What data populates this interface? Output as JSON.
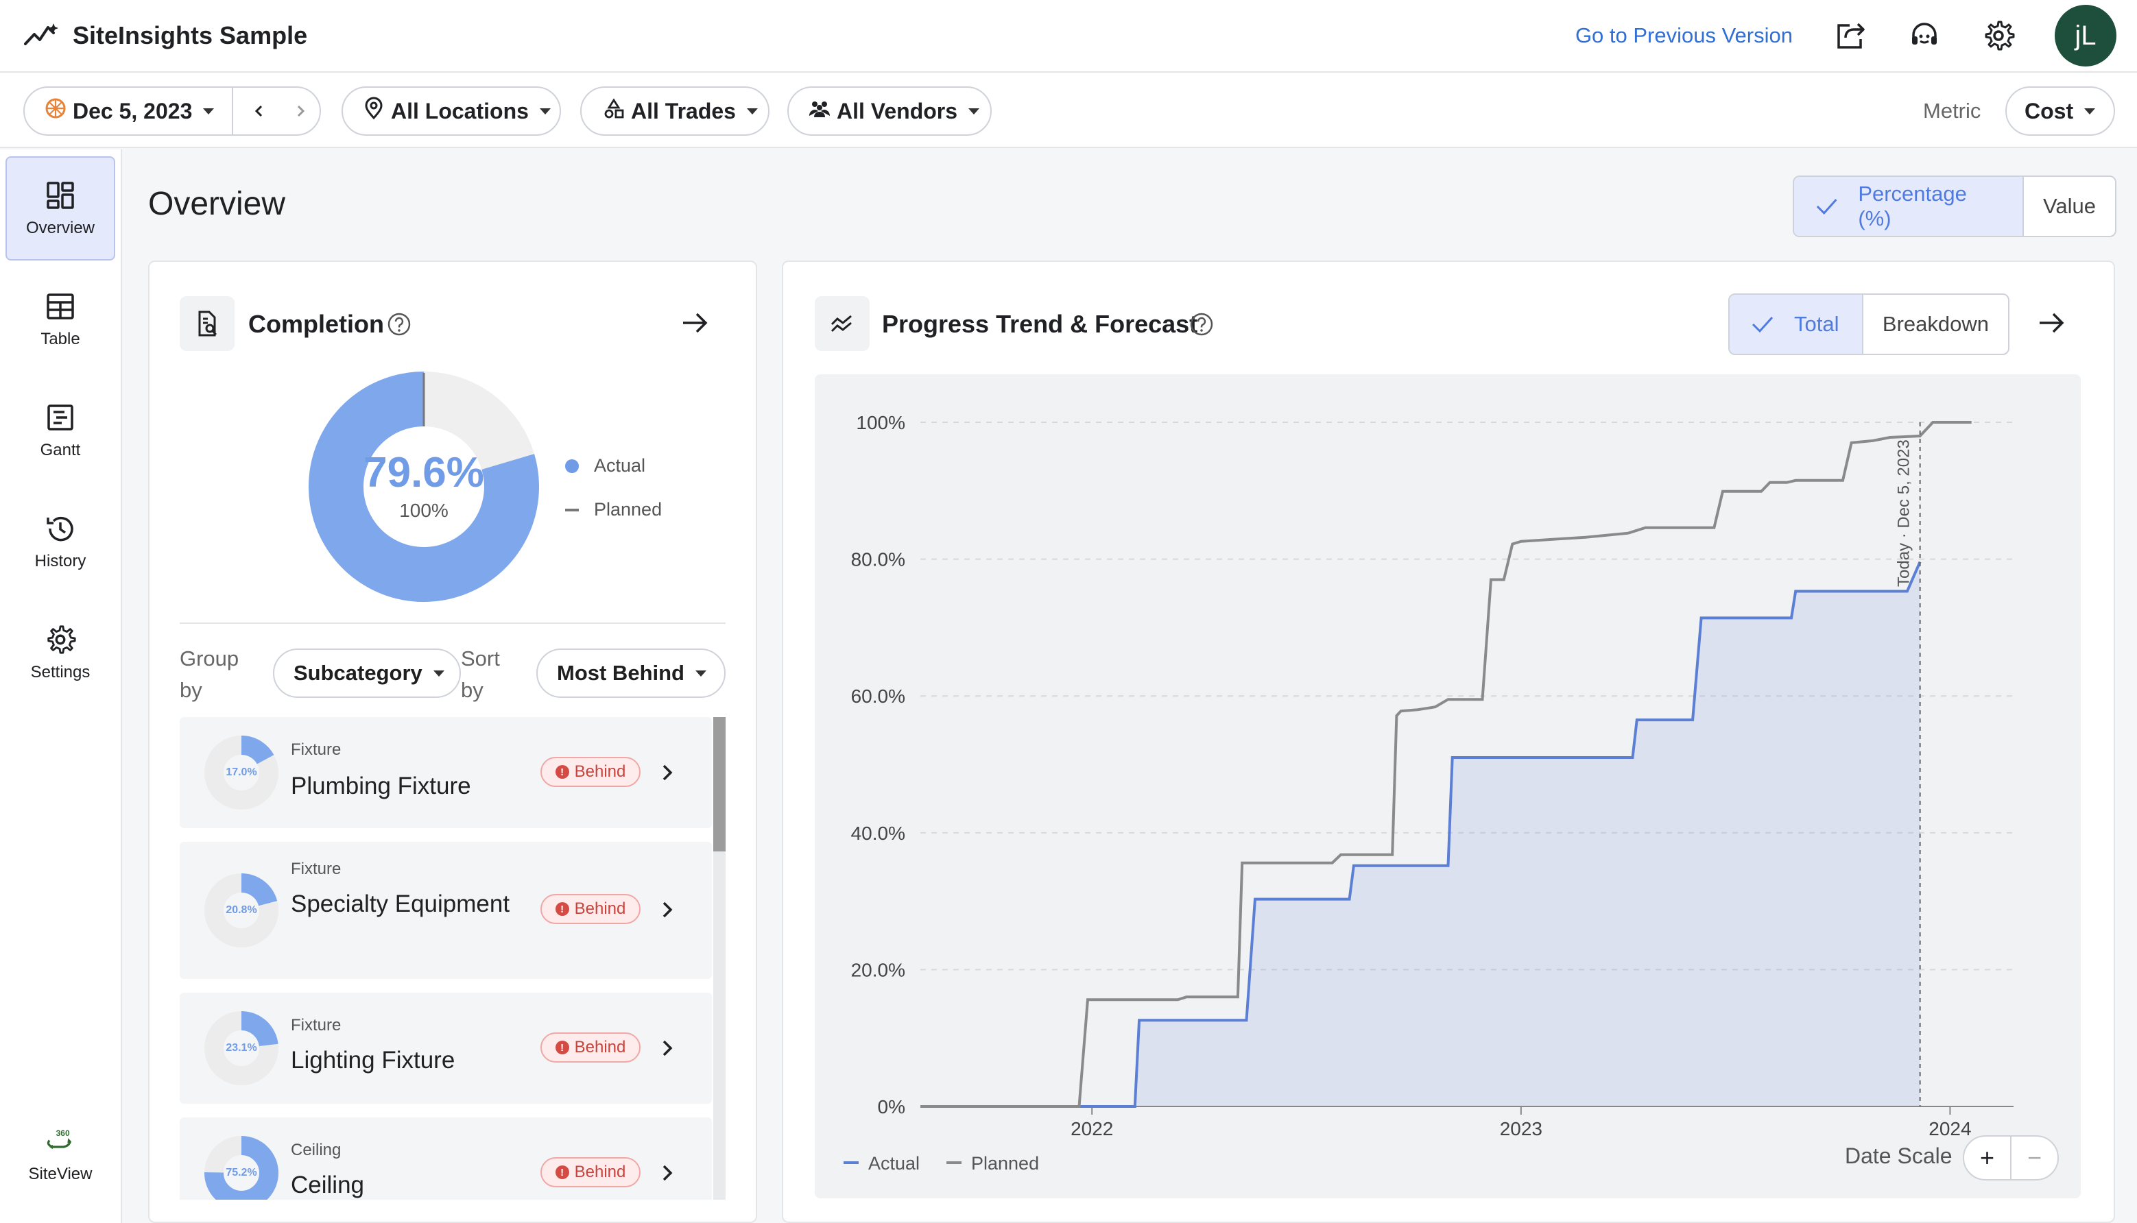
{
  "app": {
    "title": "SiteInsights Sample",
    "prev_version": "Go to Previous Version",
    "avatar": "jL"
  },
  "filters": {
    "date": "Dec 5, 2023",
    "locations": "All Locations",
    "trades": "All Trades",
    "vendors": "All Vendors",
    "metric_label": "Metric",
    "metric_value": "Cost"
  },
  "sidebar": {
    "items": [
      {
        "label": "Overview",
        "icon": "dashboard-icon"
      },
      {
        "label": "Table",
        "icon": "table-icon"
      },
      {
        "label": "Gantt",
        "icon": "gantt-icon"
      },
      {
        "label": "History",
        "icon": "history-icon"
      },
      {
        "label": "Settings",
        "icon": "gear-icon"
      },
      {
        "label": "SiteView",
        "icon": "siteview-360-icon",
        "badge": "360"
      }
    ]
  },
  "page": {
    "title": "Overview",
    "toggle": {
      "selected": "Percentage (%)",
      "other": "Value"
    }
  },
  "completion": {
    "title": "Completion",
    "actual_pct": "79.6%",
    "planned_pct": "100%",
    "actual_fraction": 0.796,
    "legend": {
      "actual": "Actual",
      "planned": "Planned"
    },
    "group_by_label": "Group by",
    "group_by_value": "Subcategory",
    "sort_by_label": "Sort by",
    "sort_by_value": "Most Behind",
    "items": [
      {
        "category": "Fixture",
        "name": "Plumbing Fixture",
        "pct": "17.0%",
        "fraction": 0.17,
        "status": "Behind"
      },
      {
        "category": "Fixture",
        "name": "Specialty Equipment",
        "pct": "20.8%",
        "fraction": 0.208,
        "status": "Behind"
      },
      {
        "category": "Fixture",
        "name": "Lighting Fixture",
        "pct": "23.1%",
        "fraction": 0.231,
        "status": "Behind"
      },
      {
        "category": "Ceiling",
        "name": "Ceiling",
        "pct": "75.2%",
        "fraction": 0.752,
        "status": "Behind"
      }
    ]
  },
  "trend": {
    "title": "Progress Trend & Forecast",
    "toggle": {
      "selected": "Total",
      "other": "Breakdown"
    },
    "date_scale": "Date Scale",
    "zoom_in": "+",
    "zoom_out": "−"
  },
  "chart_data": {
    "type": "line",
    "title": "Progress Trend & Forecast",
    "y_ticks": [
      "0%",
      "20.0%",
      "40.0%",
      "60.0%",
      "80.0%",
      "100%"
    ],
    "x_ticks": [
      "2022",
      "2023",
      "2024"
    ],
    "ylim": [
      0,
      100
    ],
    "x_unit": "year",
    "xlim": [
      2021.6,
      2024.1
    ],
    "grid": true,
    "legend_position": "bottom-left",
    "today_label": "Today · Dec 5, 2023",
    "today_x": 2023.93,
    "series": [
      {
        "name": "Actual",
        "color": "#5b7fd4",
        "area": true,
        "points": [
          [
            2021.6,
            0
          ],
          [
            2022.1,
            0
          ],
          [
            2022.11,
            12.6
          ],
          [
            2022.36,
            12.6
          ],
          [
            2022.38,
            30.3
          ],
          [
            2022.6,
            30.3
          ],
          [
            2022.61,
            35.2
          ],
          [
            2022.83,
            35.2
          ],
          [
            2022.84,
            51
          ],
          [
            2023.26,
            51
          ],
          [
            2023.27,
            56.5
          ],
          [
            2023.4,
            56.5
          ],
          [
            2023.42,
            71.4
          ],
          [
            2023.63,
            71.4
          ],
          [
            2023.64,
            75.3
          ],
          [
            2023.9,
            75.3
          ],
          [
            2023.93,
            79.6
          ]
        ]
      },
      {
        "name": "Planned",
        "color": "#8a8a8a",
        "area": false,
        "points": [
          [
            2021.6,
            0
          ],
          [
            2021.97,
            0
          ],
          [
            2021.99,
            15.6
          ],
          [
            2022.2,
            15.6
          ],
          [
            2022.22,
            16
          ],
          [
            2022.34,
            16
          ],
          [
            2022.35,
            35.6
          ],
          [
            2022.56,
            35.6
          ],
          [
            2022.58,
            36.8
          ],
          [
            2022.7,
            36.8
          ],
          [
            2022.71,
            57.1
          ],
          [
            2022.72,
            57.8
          ],
          [
            2022.76,
            58
          ],
          [
            2022.8,
            58.4
          ],
          [
            2022.83,
            59.5
          ],
          [
            2022.91,
            59.5
          ],
          [
            2022.93,
            77
          ],
          [
            2022.96,
            77
          ],
          [
            2022.98,
            82.2
          ],
          [
            2023.0,
            82.6
          ],
          [
            2023.15,
            83.2
          ],
          [
            2023.25,
            83.8
          ],
          [
            2023.29,
            84.6
          ],
          [
            2023.45,
            84.6
          ],
          [
            2023.47,
            89.9
          ],
          [
            2023.56,
            89.9
          ],
          [
            2023.58,
            91.2
          ],
          [
            2023.62,
            91.2
          ],
          [
            2023.64,
            91.5
          ],
          [
            2023.75,
            91.5
          ],
          [
            2023.77,
            97
          ],
          [
            2023.82,
            97.3
          ],
          [
            2023.86,
            97.8
          ],
          [
            2023.93,
            98
          ],
          [
            2023.96,
            100
          ],
          [
            2024.05,
            100
          ]
        ]
      }
    ]
  }
}
